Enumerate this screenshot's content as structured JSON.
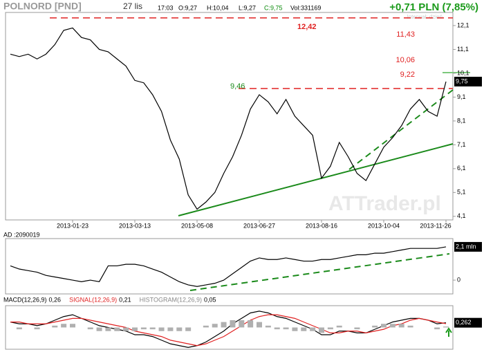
{
  "header": {
    "ticker": "POLNORD [PND]",
    "date": "27 lis",
    "time": "17:03",
    "open": "O:9,27",
    "high": "H:10,04",
    "low": "L:9,27",
    "close": "C:9,75",
    "volume": "Vol:331169",
    "change": "+0,71 PLN (7,85%)",
    "interval": "Interwał: dzień",
    "watermark": "ATTrader.pl"
  },
  "chart_data": [
    {
      "type": "line",
      "color": "#000000",
      "categories": [
        null,
        null,
        null,
        null,
        null,
        null,
        null,
        "2013-01-23",
        null,
        null,
        null,
        null,
        null,
        null,
        "2013-03-13",
        null,
        null,
        null,
        null,
        null,
        null,
        "2013-05-08",
        null,
        null,
        null,
        null,
        null,
        null,
        "2013-06-27",
        null,
        null,
        null,
        null,
        null,
        null,
        "2013-08-16",
        null,
        null,
        null,
        null,
        null,
        null,
        "2013-10-04",
        null,
        null,
        null,
        null,
        null,
        null,
        "2013-11-26"
      ],
      "values": [
        10.9,
        10.8,
        10.9,
        10.7,
        10.9,
        11.3,
        11.9,
        12.0,
        11.6,
        11.5,
        11.1,
        11.0,
        10.7,
        10.4,
        9.8,
        9.7,
        9.2,
        8.5,
        7.3,
        6.5,
        5.0,
        4.4,
        4.7,
        5.1,
        5.9,
        6.6,
        7.5,
        8.6,
        9.2,
        8.9,
        8.4,
        9.0,
        8.3,
        7.9,
        7.5,
        5.7,
        6.2,
        7.2,
        6.6,
        5.9,
        5.6,
        6.3,
        7.0,
        7.4,
        7.9,
        8.6,
        9.0,
        8.5,
        8.3,
        9.75
      ],
      "ylim": [
        3.95,
        12.65
      ],
      "yticks": [
        {
          "value": 4.1,
          "label": "4,1"
        },
        {
          "value": 5.1,
          "label": "5,1"
        },
        {
          "value": 6.1,
          "label": "6,1"
        },
        {
          "value": 7.1,
          "label": "7,1"
        },
        {
          "value": 8.1,
          "label": "8,1"
        },
        {
          "value": 9.1,
          "label": "9,1"
        },
        {
          "value": 10.1,
          "label": "10,1"
        },
        {
          "value": 11.1,
          "label": "11,1"
        },
        {
          "value": 12.1,
          "label": "12,1"
        }
      ],
      "levels": [
        {
          "value": 12.42,
          "label": "12,42"
        },
        {
          "value": 9.46,
          "label": "9,46"
        }
      ],
      "annotations": [
        {
          "value": 11.43,
          "label": "11,43"
        },
        {
          "value": 10.06,
          "label": "10,06"
        },
        {
          "value": 9.22,
          "label": "9,22"
        }
      ],
      "last_value_label": "9,75"
    },
    {
      "type": "line",
      "title": "AD :2090019",
      "color": "#000000",
      "values": [
        0.9,
        0.7,
        0.6,
        0.5,
        0.3,
        0.2,
        0.1,
        0.0,
        -0.1,
        0.0,
        -0.1,
        0.9,
        0.9,
        1.0,
        1.0,
        0.9,
        0.7,
        0.5,
        0.2,
        -0.1,
        -0.3,
        -0.4,
        -0.3,
        -0.2,
        0.0,
        0.4,
        0.8,
        1.2,
        1.4,
        1.3,
        1.3,
        1.4,
        1.3,
        1.2,
        1.2,
        1.3,
        1.3,
        1.4,
        1.5,
        1.6,
        1.6,
        1.7,
        1.7,
        1.8,
        1.9,
        2.0,
        2.0,
        2.0,
        2.0,
        2.1
      ],
      "ylim": [
        -0.87,
        2.62
      ],
      "yticks": [
        0
      ],
      "last_value_label": "2,1 mln"
    },
    {
      "type": "line",
      "series": [
        {
          "name": "MACD(12,26,9)",
          "value_label": "0,26",
          "color": "#000000",
          "values": [
            0.3,
            0.2,
            0.2,
            0.1,
            0.2,
            0.4,
            0.6,
            0.7,
            0.5,
            0.3,
            0.1,
            0.0,
            -0.1,
            -0.2,
            -0.4,
            -0.4,
            -0.5,
            -0.7,
            -0.9,
            -1.0,
            -1.1,
            -1.0,
            -0.8,
            -0.5,
            -0.2,
            0.2,
            0.5,
            0.8,
            0.9,
            0.8,
            0.6,
            0.5,
            0.3,
            0.1,
            -0.1,
            -0.4,
            -0.4,
            -0.2,
            -0.2,
            -0.3,
            -0.3,
            -0.1,
            0.1,
            0.3,
            0.4,
            0.5,
            0.5,
            0.4,
            0.2,
            0.26
          ]
        },
        {
          "name": "SIGNAL(12,26,9)",
          "value_label": "0,21",
          "color": "#e02020",
          "values": [
            0.3,
            0.3,
            0.2,
            0.2,
            0.2,
            0.3,
            0.4,
            0.5,
            0.5,
            0.4,
            0.3,
            0.2,
            0.1,
            0.0,
            -0.2,
            -0.3,
            -0.4,
            -0.5,
            -0.7,
            -0.8,
            -0.9,
            -1.0,
            -0.9,
            -0.7,
            -0.5,
            -0.2,
            0.1,
            0.4,
            0.6,
            0.7,
            0.7,
            0.6,
            0.5,
            0.3,
            0.1,
            -0.1,
            -0.3,
            -0.3,
            -0.2,
            -0.2,
            -0.3,
            -0.2,
            -0.1,
            0.1,
            0.2,
            0.4,
            0.5,
            0.4,
            0.3,
            0.21
          ]
        },
        {
          "name": "HISTOGRAM(12,26,9)",
          "value_label": "0,05",
          "color": "#b0b0b0",
          "type": "bar",
          "values": [
            0,
            -0.1,
            0,
            -0.1,
            0,
            0.1,
            0.2,
            0.2,
            0,
            -0.1,
            -0.2,
            -0.2,
            -0.2,
            -0.2,
            -0.2,
            -0.1,
            -0.1,
            -0.2,
            -0.2,
            -0.2,
            -0.2,
            0,
            0.1,
            0.2,
            0.3,
            0.4,
            0.4,
            0.4,
            0.3,
            0.1,
            -0.1,
            -0.1,
            -0.2,
            -0.2,
            -0.2,
            -0.3,
            -0.1,
            0.1,
            0,
            -0.1,
            0,
            0.1,
            0.2,
            0.2,
            0.2,
            0.1,
            0,
            0,
            -0.1,
            0.05
          ]
        }
      ],
      "ylim": [
        -1.2,
        1.2
      ],
      "last_value_label": "0,262"
    }
  ]
}
